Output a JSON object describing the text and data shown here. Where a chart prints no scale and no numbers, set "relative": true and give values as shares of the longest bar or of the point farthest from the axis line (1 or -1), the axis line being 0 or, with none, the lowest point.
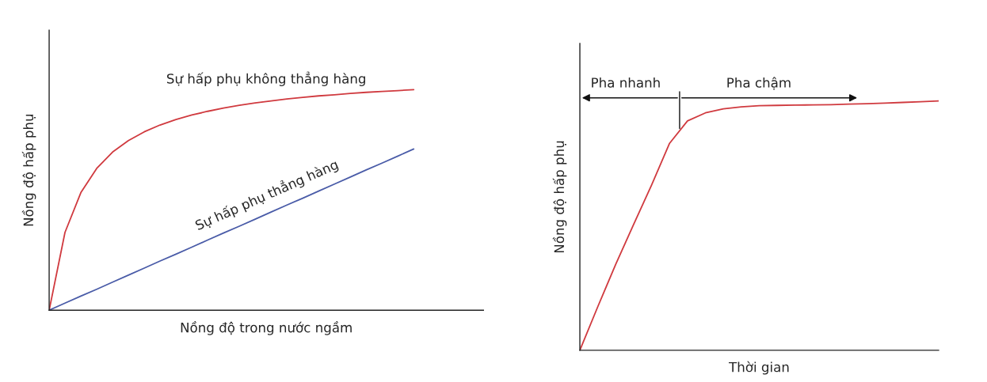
{
  "chart_data": [
    {
      "type": "line",
      "relative": true,
      "xlabel": "Nồng độ trong nước ngầm",
      "ylabel": "Nồng độ hấp phụ",
      "legend": false,
      "marker": "none",
      "line_style": "solid",
      "categories": [
        null,
        null,
        null,
        null,
        null,
        null,
        null,
        null,
        null,
        null,
        null,
        null,
        null,
        null,
        null,
        null,
        null,
        null,
        null,
        null,
        null,
        null,
        null,
        null
      ],
      "series": [
        {
          "color": "#d03a3f",
          "values": [
            0,
            0.353,
            0.533,
            0.643,
            0.717,
            0.769,
            0.809,
            0.84,
            0.865,
            0.885,
            0.902,
            0.917,
            0.929,
            0.94,
            0.949,
            0.958,
            0.965,
            0.972,
            0.977,
            0.983,
            0.988,
            0.992,
            0.996,
            1.0
          ]
        },
        {
          "color": "#4a5ca8",
          "values": [
            0,
            0.032,
            0.064,
            0.095,
            0.127,
            0.159,
            0.191,
            0.223,
            0.254,
            0.286,
            0.318,
            0.35,
            0.381,
            0.413,
            0.445,
            0.477,
            0.508,
            0.54,
            0.572,
            0.604,
            0.636,
            0.667,
            0.699,
            0.731
          ]
        }
      ],
      "annotations": [
        "Sự hấp phụ không thẳng hàng",
        "Sự hấp phụ thẳng hàng"
      ]
    },
    {
      "type": "line",
      "relative": true,
      "xlabel": "Thời gian",
      "ylabel": "Nồng độ hấp phụ",
      "legend": false,
      "marker": "none",
      "line_style": "solid",
      "categories": [
        null,
        null,
        null,
        null,
        null,
        null,
        null,
        null,
        null,
        null,
        null,
        null,
        null,
        null,
        null,
        null,
        null,
        null,
        null,
        null,
        null
      ],
      "series": [
        {
          "color": "#d03a3f",
          "values": [
            0,
            0.175,
            0.345,
            0.505,
            0.663,
            0.83,
            0.92,
            0.952,
            0.968,
            0.976,
            0.981,
            0.982,
            0.983,
            0.984,
            0.985,
            0.987,
            0.989,
            0.991,
            0.994,
            0.997,
            1.0
          ]
        }
      ],
      "annotations": [
        "Pha nhanh",
        "Pha chậm"
      ]
    }
  ]
}
